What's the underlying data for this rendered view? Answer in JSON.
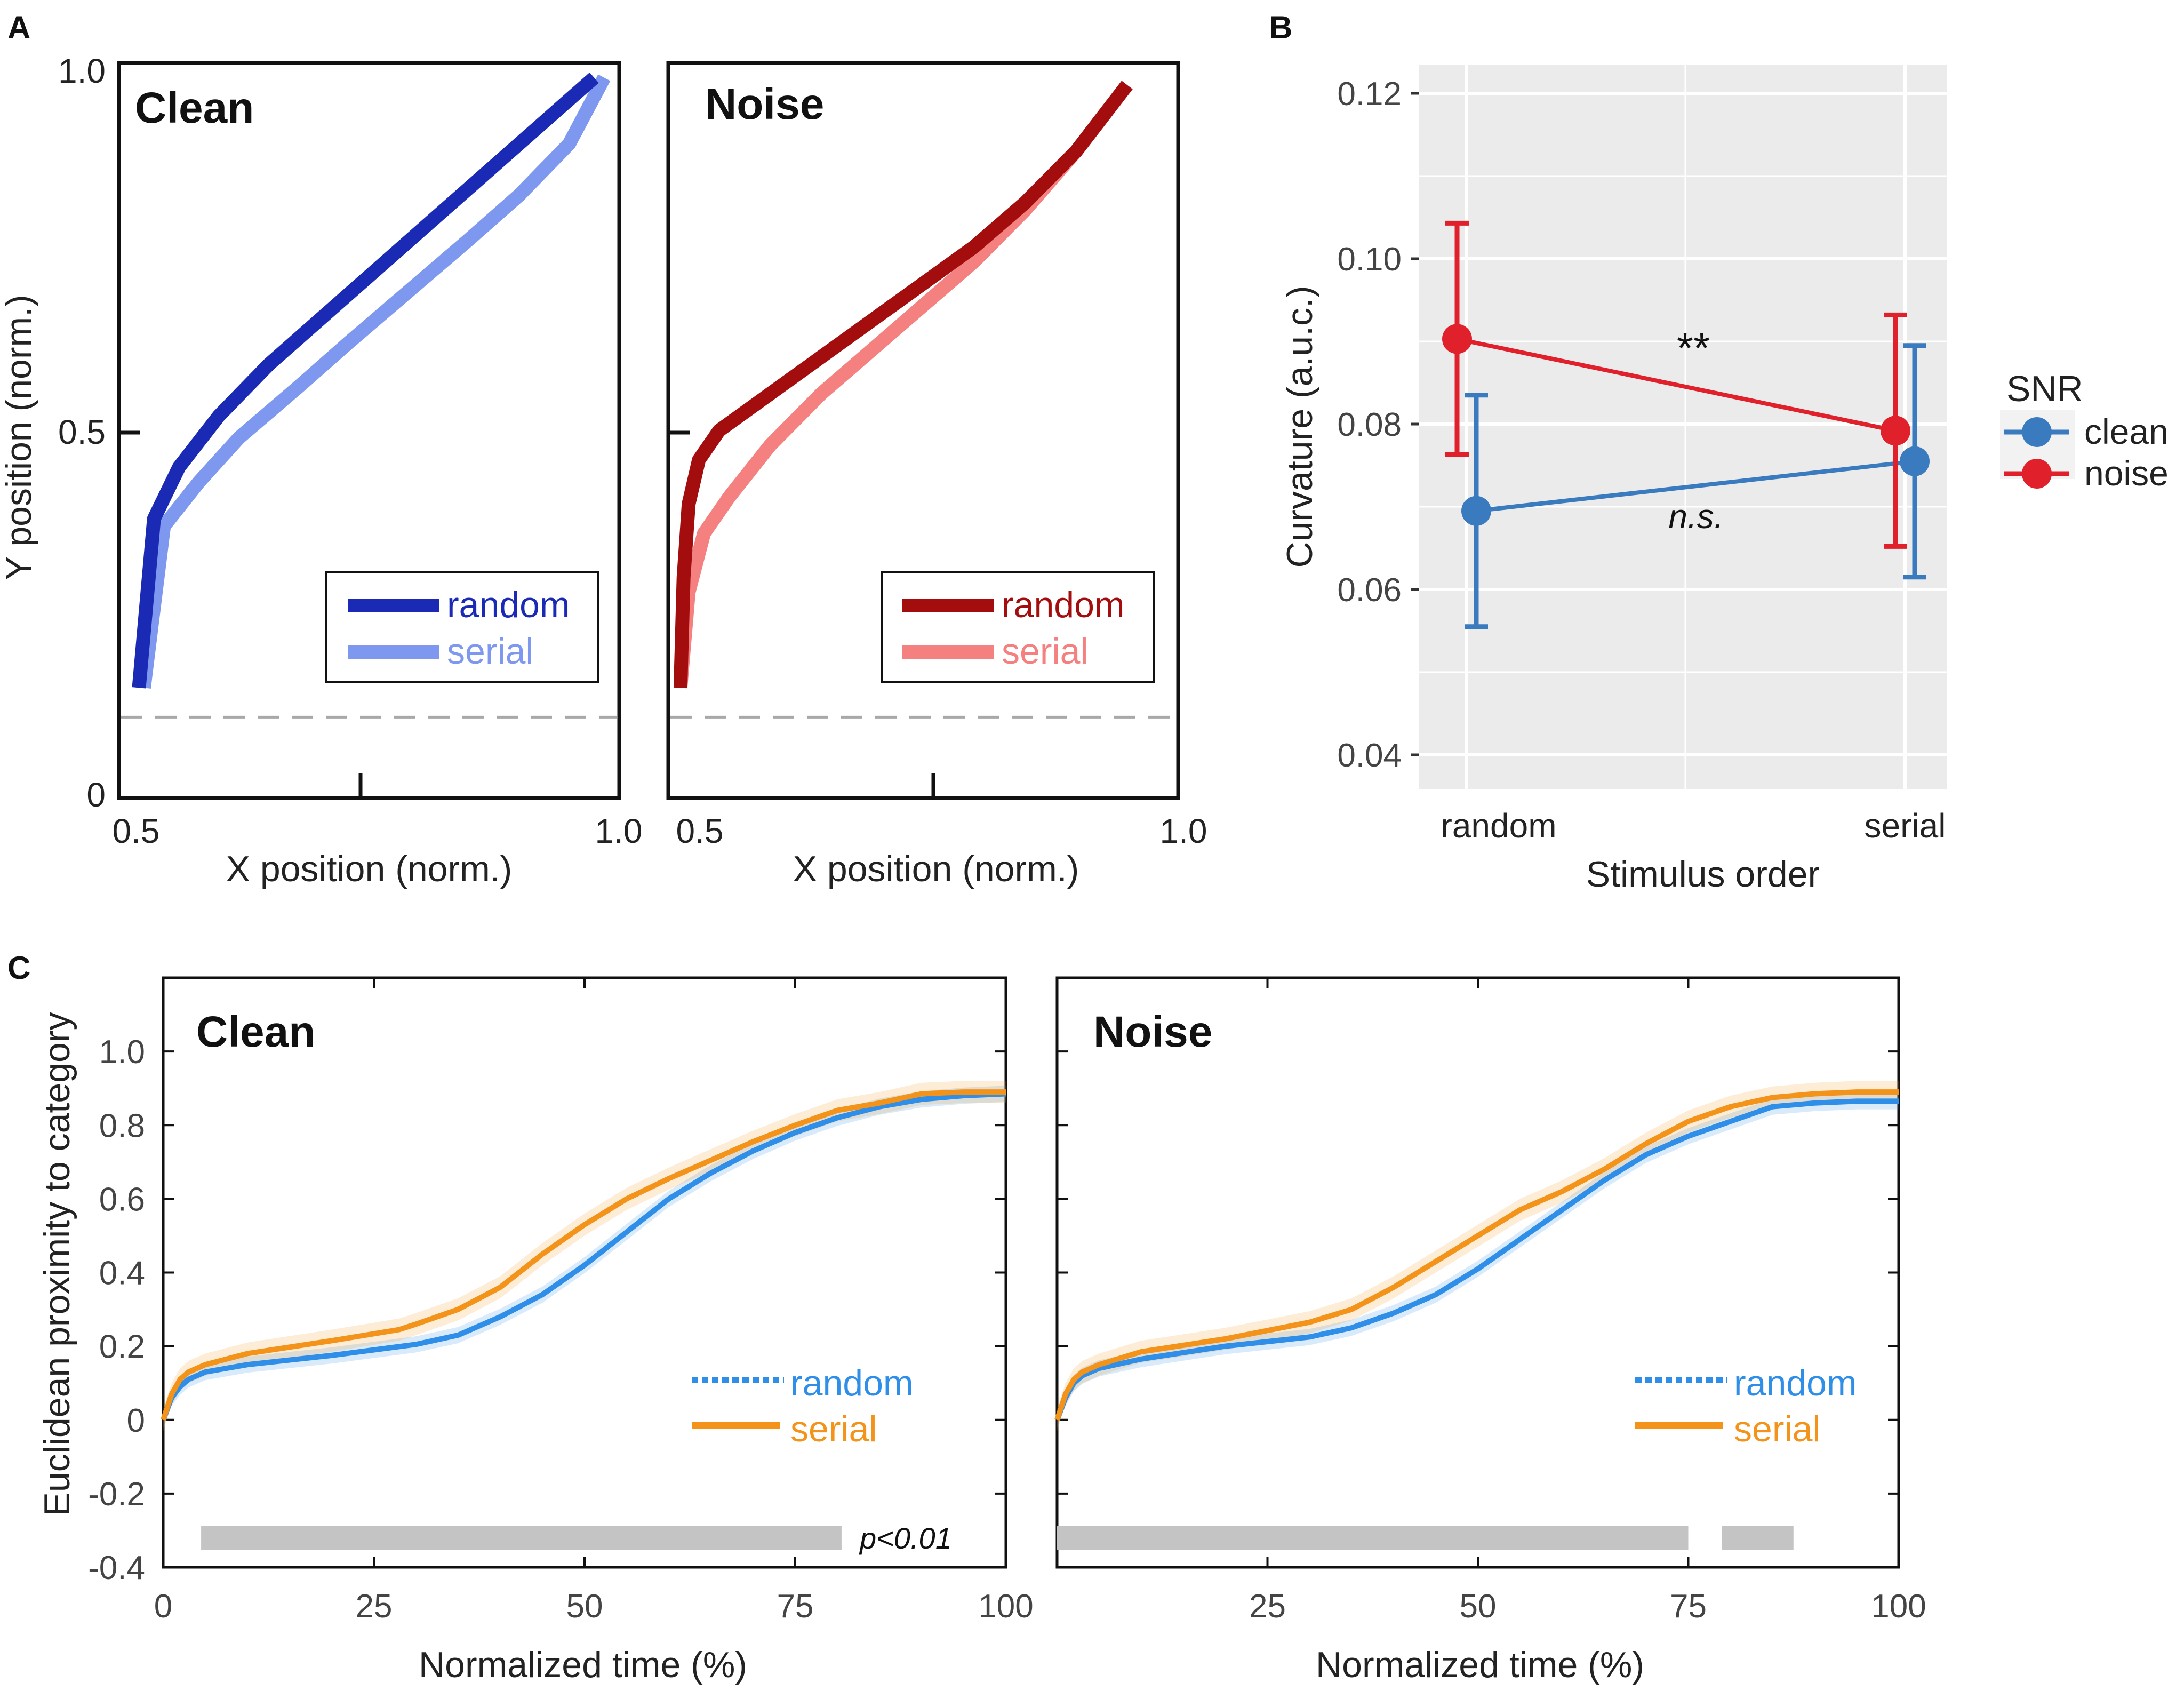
{
  "colors": {
    "clean_random": "#1a2ab4",
    "clean_serial": "#7e98ef",
    "noise_random": "#a30d0d",
    "noise_serial": "#f58080",
    "gg_clean": "#3a7bbf",
    "gg_noise": "#e0202a",
    "c_random": "#2e8ee8",
    "c_serial": "#f39319",
    "sig_bar": "#c4c4c4",
    "ggplot_panel": "#ebebeb"
  },
  "labels": {
    "panel_a": "A",
    "panel_b": "B",
    "panel_c": "C",
    "a_ylabel": "Y position (norm.)",
    "a_xlabel": "X position (norm.)",
    "a_y_ticks": [
      "1.0",
      "0.5",
      "0"
    ],
    "a_x_ticks": [
      "0.5",
      "1.0"
    ],
    "b_ylabel": "Curvature (a.u.c.)",
    "b_xlabel": "Stimulus order",
    "b_legend_title": "SNR",
    "c_ylabel": "Euclidean proximity to category",
    "c_xlabel": "Normalized time (%)",
    "c_pval": "p<0.01"
  },
  "chart_data": [
    {
      "id": "A-clean",
      "type": "line",
      "title": "Clean",
      "xlabel": "X position (norm.)",
      "ylabel": "Y position (norm.)",
      "xlim": [
        0.5,
        1.0
      ],
      "ylim": [
        0,
        1.0
      ],
      "baseline_y": 0.11,
      "legend": [
        "random",
        "serial"
      ],
      "series": [
        {
          "name": "random",
          "x": [
            0.52,
            0.535,
            0.56,
            0.6,
            0.65,
            0.7,
            0.75,
            0.8,
            0.85,
            0.9,
            0.95,
            0.975
          ],
          "y": [
            0.15,
            0.38,
            0.45,
            0.52,
            0.59,
            0.65,
            0.71,
            0.77,
            0.83,
            0.89,
            0.95,
            0.98
          ]
        },
        {
          "name": "serial",
          "x": [
            0.525,
            0.545,
            0.58,
            0.62,
            0.68,
            0.73,
            0.79,
            0.85,
            0.9,
            0.95,
            0.985
          ],
          "y": [
            0.15,
            0.37,
            0.43,
            0.49,
            0.56,
            0.62,
            0.69,
            0.76,
            0.82,
            0.89,
            0.98
          ]
        }
      ]
    },
    {
      "id": "A-noise",
      "type": "line",
      "title": "Noise",
      "xlabel": "X position (norm.)",
      "xlim": [
        0.5,
        1.0
      ],
      "ylim": [
        0,
        1.0
      ],
      "baseline_y": 0.11,
      "legend": [
        "random",
        "serial"
      ],
      "series": [
        {
          "name": "random",
          "x": [
            0.512,
            0.515,
            0.52,
            0.53,
            0.55,
            0.6,
            0.65,
            0.7,
            0.75,
            0.8,
            0.85,
            0.9,
            0.95
          ],
          "y": [
            0.15,
            0.3,
            0.4,
            0.46,
            0.5,
            0.55,
            0.6,
            0.65,
            0.7,
            0.75,
            0.81,
            0.88,
            0.97
          ]
        },
        {
          "name": "serial",
          "x": [
            0.512,
            0.52,
            0.535,
            0.56,
            0.6,
            0.65,
            0.7,
            0.75,
            0.8,
            0.85,
            0.9,
            0.95
          ],
          "y": [
            0.15,
            0.28,
            0.36,
            0.41,
            0.48,
            0.55,
            0.61,
            0.67,
            0.73,
            0.8,
            0.88,
            0.97
          ]
        }
      ]
    },
    {
      "id": "B",
      "type": "scatter",
      "title": "",
      "xlabel": "Stimulus order",
      "ylabel": "Curvature (a.u.c.)",
      "categories": [
        "random",
        "serial"
      ],
      "ylim": [
        0.035,
        0.125
      ],
      "y_ticks": [
        "0.04",
        "0.06",
        "0.08",
        "0.10",
        "0.12"
      ],
      "legend_title": "SNR",
      "annotations": [
        "**",
        "n.s."
      ],
      "series": [
        {
          "name": "clean",
          "values": [
            0.0695,
            0.0755
          ],
          "lower": [
            0.0555,
            0.0615
          ],
          "upper": [
            0.0835,
            0.0895
          ]
        },
        {
          "name": "noise",
          "values": [
            0.0903,
            0.0792
          ],
          "lower": [
            0.0763,
            0.0652
          ],
          "upper": [
            0.1043,
            0.0932
          ]
        }
      ]
    },
    {
      "id": "C-clean",
      "type": "line",
      "title": "Clean",
      "xlabel": "Normalized time (%)",
      "ylabel": "Euclidean proximity to category",
      "xlim": [
        0,
        100
      ],
      "ylim": [
        -0.4,
        1.2
      ],
      "x_ticks": [
        "0",
        "25",
        "50",
        "75",
        "100"
      ],
      "y_ticks": [
        "-0.4",
        "-0.2",
        "0",
        "0.2",
        "0.4",
        "0.6",
        "0.8",
        "1.0"
      ],
      "legend": [
        "random",
        "serial"
      ],
      "significance": [
        [
          4.5,
          80.5
        ]
      ],
      "pval": "p<0.01",
      "series": [
        {
          "name": "random",
          "x": [
            0,
            1,
            2,
            3,
            5,
            10,
            20,
            30,
            35,
            40,
            45,
            50,
            55,
            60,
            65,
            70,
            75,
            80,
            85,
            90,
            95,
            100
          ],
          "y": [
            0,
            0.06,
            0.09,
            0.11,
            0.13,
            0.15,
            0.175,
            0.205,
            0.23,
            0.28,
            0.34,
            0.42,
            0.51,
            0.6,
            0.67,
            0.73,
            0.78,
            0.82,
            0.85,
            0.87,
            0.88,
            0.885
          ]
        },
        {
          "name": "serial",
          "x": [
            0,
            1,
            2,
            3,
            5,
            10,
            20,
            28,
            30,
            35,
            40,
            45,
            50,
            55,
            60,
            65,
            70,
            75,
            80,
            85,
            90,
            95,
            100
          ],
          "y": [
            0,
            0.07,
            0.11,
            0.13,
            0.15,
            0.18,
            0.215,
            0.245,
            0.26,
            0.3,
            0.36,
            0.45,
            0.53,
            0.6,
            0.655,
            0.705,
            0.755,
            0.8,
            0.84,
            0.86,
            0.885,
            0.89,
            0.89
          ]
        }
      ]
    },
    {
      "id": "C-noise",
      "type": "line",
      "title": "Noise",
      "xlabel": "Normalized time (%)",
      "xlim": [
        0,
        100
      ],
      "ylim": [
        -0.4,
        1.2
      ],
      "x_ticks": [
        "25",
        "50",
        "75",
        "100"
      ],
      "legend": [
        "random",
        "serial"
      ],
      "significance": [
        [
          0,
          75
        ],
        [
          79,
          87.5
        ]
      ],
      "series": [
        {
          "name": "random",
          "x": [
            0,
            1,
            2,
            3,
            5,
            10,
            20,
            30,
            35,
            40,
            45,
            50,
            55,
            60,
            65,
            70,
            75,
            80,
            85,
            90,
            95,
            100
          ],
          "y": [
            0,
            0.06,
            0.1,
            0.12,
            0.14,
            0.165,
            0.2,
            0.225,
            0.25,
            0.29,
            0.34,
            0.41,
            0.49,
            0.57,
            0.65,
            0.72,
            0.77,
            0.81,
            0.85,
            0.86,
            0.865,
            0.865
          ]
        },
        {
          "name": "serial",
          "x": [
            0,
            1,
            2,
            3,
            5,
            10,
            20,
            30,
            35,
            40,
            45,
            50,
            55,
            60,
            65,
            70,
            75,
            80,
            85,
            90,
            95,
            100
          ],
          "y": [
            0,
            0.07,
            0.11,
            0.13,
            0.15,
            0.185,
            0.22,
            0.265,
            0.3,
            0.36,
            0.43,
            0.5,
            0.57,
            0.62,
            0.68,
            0.75,
            0.81,
            0.85,
            0.875,
            0.885,
            0.89,
            0.89
          ]
        }
      ]
    }
  ]
}
